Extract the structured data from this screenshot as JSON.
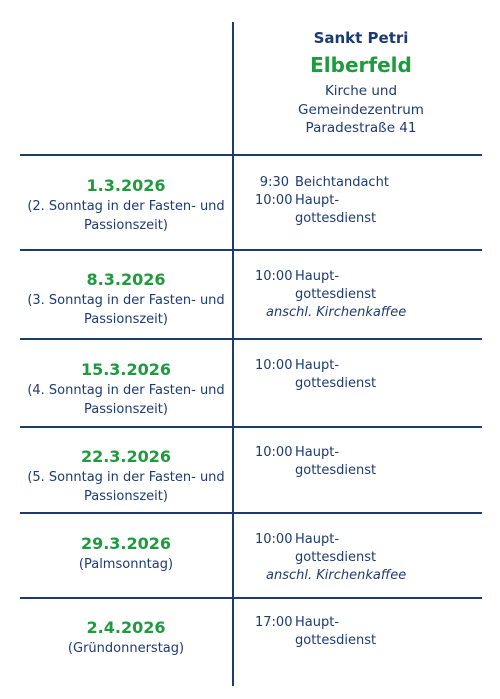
{
  "header": {
    "church": "Sankt Petri",
    "place": "Elberfeld",
    "line1": "Kirche und",
    "line2": "Gemeindezentrum",
    "address": "Paradestraße 41"
  },
  "rows": [
    {
      "date": "1.3.2026",
      "occasion1": "(2. Sonntag in der Fasten- und",
      "occasion2": "Passionszeit)",
      "services": [
        {
          "time": "9:30",
          "desc": "Beichtandacht"
        },
        {
          "time": "10:00",
          "desc": "Haupt-"
        },
        {
          "time": "",
          "desc": "gottesdienst"
        }
      ]
    },
    {
      "date": "8.3.2026",
      "occasion1": "(3. Sonntag in der Fasten- und",
      "occasion2": "Passionszeit)",
      "services": [
        {
          "time": "10:00",
          "desc": "Haupt-"
        },
        {
          "time": "",
          "desc": "gottesdienst"
        }
      ],
      "note": "anschl. Kirchenkaffee"
    },
    {
      "date": "15.3.2026",
      "occasion1": "(4. Sonntag in der Fasten- und",
      "occasion2": "Passionszeit)",
      "services": [
        {
          "time": "10:00",
          "desc": "Haupt-"
        },
        {
          "time": "",
          "desc": "gottesdienst"
        }
      ]
    },
    {
      "date": "22.3.2026",
      "occasion1": "(5. Sonntag in der Fasten- und",
      "occasion2": "Passionszeit)",
      "services": [
        {
          "time": "10:00",
          "desc": "Haupt-"
        },
        {
          "time": "",
          "desc": "gottesdienst"
        }
      ]
    },
    {
      "date": "29.3.2026",
      "occasion1": "(Palmsonntag)",
      "services": [
        {
          "time": "10:00",
          "desc": "Haupt-"
        },
        {
          "time": "",
          "desc": "gottesdienst"
        }
      ],
      "note": "anschl. Kirchenkaffee"
    },
    {
      "date": "2.4.2026",
      "occasion1": "(Gründonnerstag)",
      "services": [
        {
          "time": "17:00",
          "desc": "Haupt-"
        },
        {
          "time": "",
          "desc": "gottesdienst"
        }
      ]
    }
  ],
  "colors": {
    "navy": "#1d3b73",
    "green": "#1f9a3e"
  }
}
